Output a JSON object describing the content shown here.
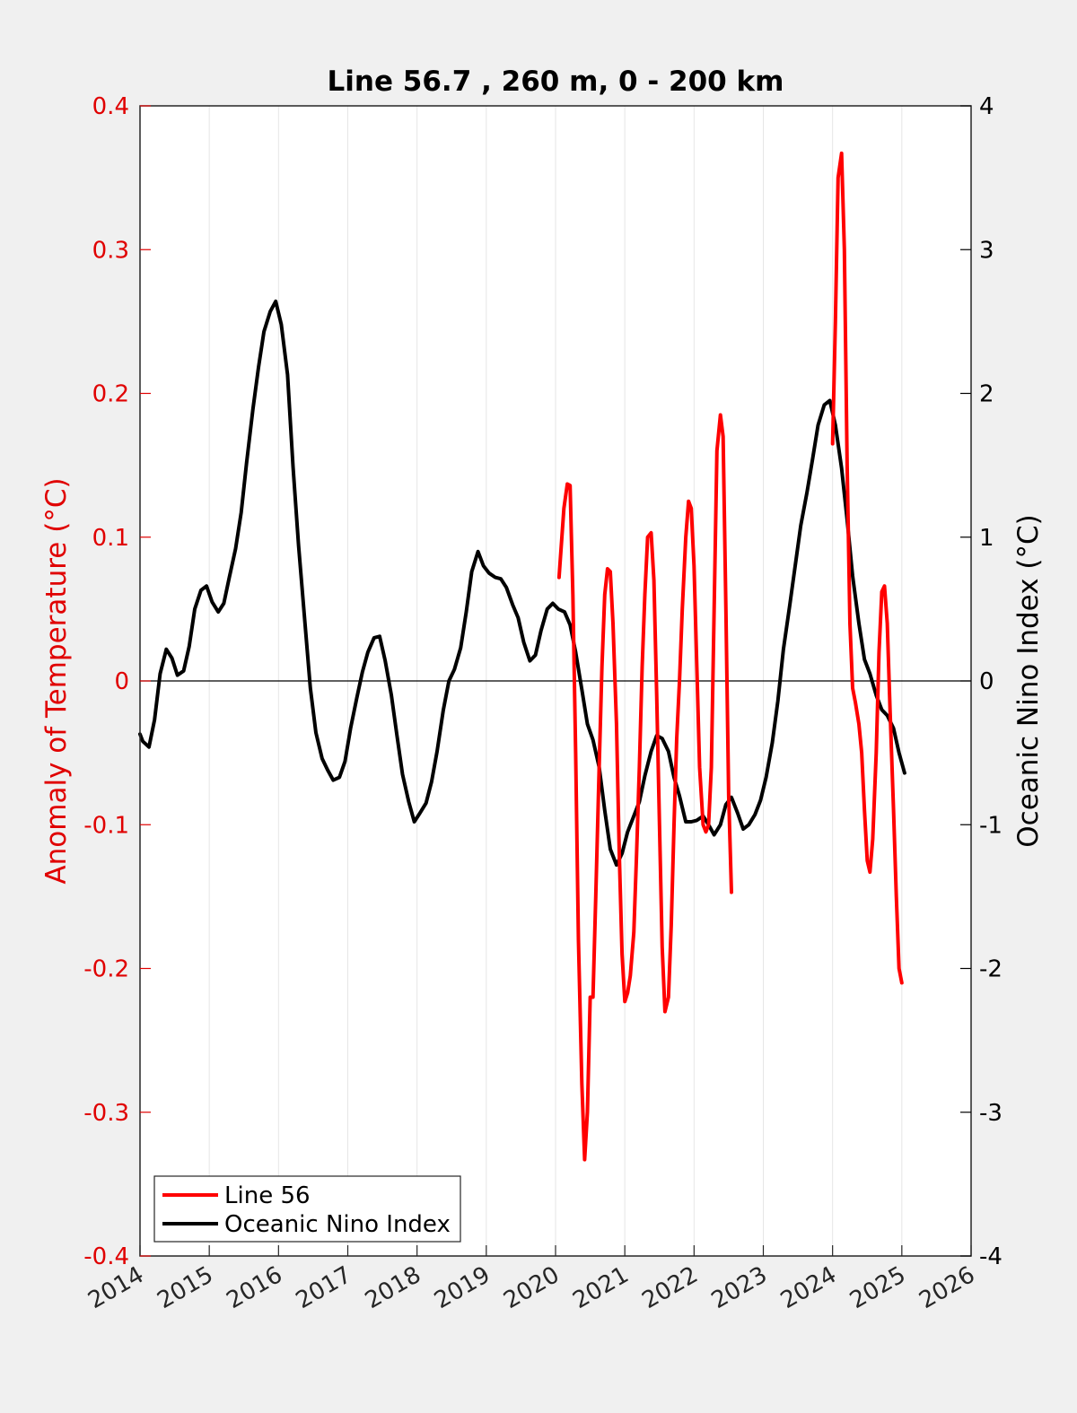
{
  "chart_data": {
    "type": "line",
    "title": "Line 56.7 , 260 m, 0 - 200 km",
    "xlabel": "",
    "ylabel_left": "Anomaly of Temperature (°C)",
    "ylabel_right": "Oceanic Nino Index (°C)",
    "xlim": [
      2014,
      2026
    ],
    "ylim_left": [
      -0.4,
      0.4
    ],
    "ylim_right": [
      -4,
      4
    ],
    "x_ticks": [
      "2014",
      "2015",
      "2016",
      "2017",
      "2018",
      "2019",
      "2020",
      "2021",
      "2022",
      "2023",
      "2024",
      "2025",
      "2026"
    ],
    "y_ticks_left": [
      "0.4",
      "0.3",
      "0.2",
      "0.1",
      "0",
      "-0.1",
      "-0.2",
      "-0.3",
      "-0.4"
    ],
    "y_ticks_right": [
      "4",
      "3",
      "2",
      "1",
      "0",
      "-1",
      "-2",
      "-3",
      "-4"
    ],
    "grid": "vertical",
    "zero_line": true,
    "legend_position": "bottom-left",
    "colors": {
      "line56": "#ff0000",
      "oni": "#000000",
      "left_axis": "#e00000"
    },
    "series": [
      {
        "name": "Line 56",
        "axis": "left",
        "segments": [
          [
            [
              2020.05,
              0.072
            ],
            [
              2020.12,
              0.12
            ],
            [
              2020.17,
              0.137
            ],
            [
              2020.21,
              0.136
            ],
            [
              2020.25,
              0.06
            ],
            [
              2020.29,
              -0.05
            ],
            [
              2020.33,
              -0.18
            ],
            [
              2020.38,
              -0.28
            ],
            [
              2020.42,
              -0.333
            ],
            [
              2020.46,
              -0.3
            ],
            [
              2020.5,
              -0.22
            ],
            [
              2020.54,
              -0.22
            ],
            [
              2020.58,
              -0.15
            ],
            [
              2020.63,
              -0.06
            ],
            [
              2020.67,
              0.01
            ],
            [
              2020.71,
              0.06
            ],
            [
              2020.75,
              0.078
            ],
            [
              2020.79,
              0.076
            ],
            [
              2020.83,
              0.04
            ],
            [
              2020.88,
              -0.03
            ],
            [
              2020.92,
              -0.12
            ],
            [
              2020.96,
              -0.19
            ],
            [
              2021.0,
              -0.223
            ],
            [
              2021.04,
              -0.217
            ],
            [
              2021.08,
              -0.205
            ],
            [
              2021.13,
              -0.175
            ],
            [
              2021.17,
              -0.12
            ],
            [
              2021.21,
              -0.06
            ],
            [
              2021.25,
              0.01
            ],
            [
              2021.29,
              0.06
            ],
            [
              2021.33,
              0.1
            ],
            [
              2021.38,
              0.103
            ],
            [
              2021.42,
              0.07
            ],
            [
              2021.46,
              -0.01
            ],
            [
              2021.5,
              -0.1
            ],
            [
              2021.54,
              -0.185
            ],
            [
              2021.58,
              -0.23
            ],
            [
              2021.63,
              -0.22
            ],
            [
              2021.67,
              -0.17
            ],
            [
              2021.71,
              -0.1
            ],
            [
              2021.75,
              -0.04
            ],
            [
              2021.79,
              0.0
            ],
            [
              2021.83,
              0.05
            ],
            [
              2021.88,
              0.1
            ],
            [
              2021.92,
              0.125
            ],
            [
              2021.96,
              0.12
            ],
            [
              2022.0,
              0.08
            ],
            [
              2022.04,
              0.01
            ],
            [
              2022.08,
              -0.06
            ],
            [
              2022.13,
              -0.1
            ],
            [
              2022.17,
              -0.105
            ],
            [
              2022.21,
              -0.1
            ],
            [
              2022.25,
              -0.06
            ],
            [
              2022.29,
              0.05
            ],
            [
              2022.33,
              0.16
            ],
            [
              2022.38,
              0.185
            ],
            [
              2022.42,
              0.17
            ],
            [
              2022.46,
              0.05
            ],
            [
              2022.5,
              -0.08
            ],
            [
              2022.54,
              -0.147
            ]
          ],
          [
            [
              2024.0,
              0.165
            ],
            [
              2024.04,
              0.25
            ],
            [
              2024.08,
              0.35
            ],
            [
              2024.13,
              0.367
            ],
            [
              2024.17,
              0.3
            ],
            [
              2024.21,
              0.15
            ],
            [
              2024.25,
              0.04
            ],
            [
              2024.29,
              -0.005
            ],
            [
              2024.33,
              -0.015
            ],
            [
              2024.38,
              -0.03
            ],
            [
              2024.42,
              -0.05
            ],
            [
              2024.46,
              -0.09
            ],
            [
              2024.5,
              -0.125
            ],
            [
              2024.54,
              -0.133
            ],
            [
              2024.58,
              -0.11
            ],
            [
              2024.63,
              -0.05
            ],
            [
              2024.67,
              0.02
            ],
            [
              2024.71,
              0.062
            ],
            [
              2024.75,
              0.066
            ],
            [
              2024.79,
              0.04
            ],
            [
              2024.83,
              -0.02
            ],
            [
              2024.88,
              -0.09
            ],
            [
              2024.92,
              -0.15
            ],
            [
              2024.96,
              -0.2
            ],
            [
              2025.0,
              -0.21
            ]
          ]
        ]
      },
      {
        "name": "Oceanic Nino Index",
        "axis": "right",
        "segments": [
          [
            [
              2014.0,
              -0.37
            ],
            [
              2014.04,
              -0.42
            ],
            [
              2014.13,
              -0.46
            ],
            [
              2014.21,
              -0.27
            ],
            [
              2014.29,
              0.05
            ],
            [
              2014.38,
              0.22
            ],
            [
              2014.46,
              0.16
            ],
            [
              2014.54,
              0.04
            ],
            [
              2014.63,
              0.07
            ],
            [
              2014.71,
              0.24
            ],
            [
              2014.79,
              0.5
            ],
            [
              2014.88,
              0.63
            ],
            [
              2014.96,
              0.66
            ],
            [
              2015.04,
              0.55
            ],
            [
              2015.13,
              0.48
            ],
            [
              2015.21,
              0.54
            ],
            [
              2015.29,
              0.72
            ],
            [
              2015.38,
              0.92
            ],
            [
              2015.46,
              1.17
            ],
            [
              2015.54,
              1.52
            ],
            [
              2015.63,
              1.89
            ],
            [
              2015.71,
              2.18
            ],
            [
              2015.79,
              2.43
            ],
            [
              2015.88,
              2.57
            ],
            [
              2015.96,
              2.64
            ],
            [
              2016.04,
              2.48
            ],
            [
              2016.13,
              2.13
            ],
            [
              2016.21,
              1.49
            ],
            [
              2016.29,
              0.94
            ],
            [
              2016.38,
              0.41
            ],
            [
              2016.46,
              -0.05
            ],
            [
              2016.54,
              -0.36
            ],
            [
              2016.63,
              -0.54
            ],
            [
              2016.71,
              -0.62
            ],
            [
              2016.79,
              -0.69
            ],
            [
              2016.88,
              -0.67
            ],
            [
              2016.96,
              -0.56
            ],
            [
              2017.04,
              -0.33
            ],
            [
              2017.13,
              -0.12
            ],
            [
              2017.21,
              0.06
            ],
            [
              2017.29,
              0.2
            ],
            [
              2017.38,
              0.3
            ],
            [
              2017.46,
              0.31
            ],
            [
              2017.54,
              0.14
            ],
            [
              2017.63,
              -0.1
            ],
            [
              2017.71,
              -0.38
            ],
            [
              2017.79,
              -0.65
            ],
            [
              2017.88,
              -0.84
            ],
            [
              2017.96,
              -0.98
            ],
            [
              2018.04,
              -0.92
            ],
            [
              2018.13,
              -0.85
            ],
            [
              2018.21,
              -0.7
            ],
            [
              2018.29,
              -0.49
            ],
            [
              2018.38,
              -0.2
            ],
            [
              2018.46,
              0.0
            ],
            [
              2018.54,
              0.08
            ],
            [
              2018.63,
              0.23
            ],
            [
              2018.71,
              0.48
            ],
            [
              2018.79,
              0.76
            ],
            [
              2018.88,
              0.9
            ],
            [
              2018.96,
              0.8
            ],
            [
              2019.04,
              0.75
            ],
            [
              2019.13,
              0.72
            ],
            [
              2019.21,
              0.71
            ],
            [
              2019.29,
              0.65
            ],
            [
              2019.38,
              0.53
            ],
            [
              2019.46,
              0.44
            ],
            [
              2019.54,
              0.27
            ],
            [
              2019.63,
              0.14
            ],
            [
              2019.71,
              0.18
            ],
            [
              2019.79,
              0.35
            ],
            [
              2019.88,
              0.5
            ],
            [
              2019.96,
              0.54
            ],
            [
              2020.04,
              0.5
            ],
            [
              2020.13,
              0.48
            ],
            [
              2020.21,
              0.39
            ],
            [
              2020.29,
              0.2
            ],
            [
              2020.38,
              -0.06
            ],
            [
              2020.46,
              -0.3
            ],
            [
              2020.54,
              -0.41
            ],
            [
              2020.63,
              -0.6
            ],
            [
              2020.71,
              -0.9
            ],
            [
              2020.79,
              -1.17
            ],
            [
              2020.88,
              -1.28
            ],
            [
              2020.96,
              -1.2
            ],
            [
              2021.04,
              -1.05
            ],
            [
              2021.13,
              -0.94
            ],
            [
              2021.21,
              -0.84
            ],
            [
              2021.29,
              -0.66
            ],
            [
              2021.38,
              -0.49
            ],
            [
              2021.46,
              -0.38
            ],
            [
              2021.54,
              -0.4
            ],
            [
              2021.63,
              -0.49
            ],
            [
              2021.71,
              -0.67
            ],
            [
              2021.79,
              -0.8
            ],
            [
              2021.88,
              -0.98
            ],
            [
              2021.96,
              -0.98
            ],
            [
              2022.04,
              -0.97
            ],
            [
              2022.13,
              -0.94
            ],
            [
              2022.21,
              -1.0
            ],
            [
              2022.29,
              -1.07
            ],
            [
              2022.38,
              -1.0
            ],
            [
              2022.46,
              -0.86
            ],
            [
              2022.54,
              -0.81
            ],
            [
              2022.63,
              -0.92
            ],
            [
              2022.71,
              -1.03
            ],
            [
              2022.79,
              -1.0
            ],
            [
              2022.88,
              -0.93
            ],
            [
              2022.96,
              -0.83
            ],
            [
              2023.04,
              -0.67
            ],
            [
              2023.13,
              -0.43
            ],
            [
              2023.21,
              -0.14
            ],
            [
              2023.29,
              0.22
            ],
            [
              2023.38,
              0.52
            ],
            [
              2023.46,
              0.8
            ],
            [
              2023.54,
              1.08
            ],
            [
              2023.63,
              1.31
            ],
            [
              2023.71,
              1.54
            ],
            [
              2023.79,
              1.78
            ],
            [
              2023.88,
              1.92
            ],
            [
              2023.96,
              1.95
            ],
            [
              2024.04,
              1.78
            ],
            [
              2024.13,
              1.48
            ],
            [
              2024.21,
              1.12
            ],
            [
              2024.29,
              0.73
            ],
            [
              2024.38,
              0.4
            ],
            [
              2024.46,
              0.15
            ],
            [
              2024.54,
              0.05
            ],
            [
              2024.63,
              -0.1
            ],
            [
              2024.71,
              -0.2
            ],
            [
              2024.79,
              -0.24
            ],
            [
              2024.88,
              -0.33
            ],
            [
              2024.96,
              -0.5
            ],
            [
              2025.04,
              -0.64
            ]
          ]
        ]
      }
    ]
  }
}
